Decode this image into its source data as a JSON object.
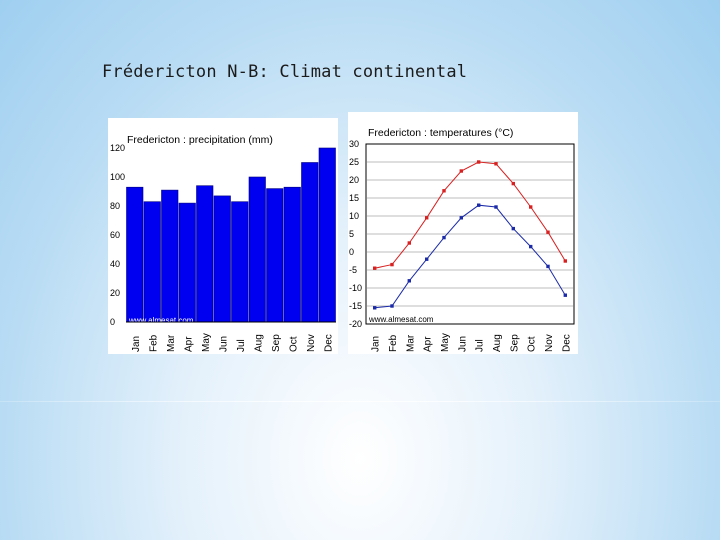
{
  "slide": {
    "title": "Frédericton N-B: Climat continental"
  },
  "chart_data": [
    {
      "type": "bar",
      "title": "Fredericton : precipitation (mm)",
      "categories": [
        "Jan",
        "Feb",
        "Mar",
        "Apr",
        "May",
        "Jun",
        "Jul",
        "Aug",
        "Sep",
        "Oct",
        "Nov",
        "Dec"
      ],
      "values": [
        93,
        83,
        91,
        82,
        94,
        87,
        83,
        100,
        92,
        93,
        110,
        120
      ],
      "ylim": [
        0,
        120
      ],
      "yticks": [
        0,
        20,
        40,
        60,
        80,
        100,
        120
      ],
      "xlabel": "",
      "ylabel": "",
      "watermark": "www.almesat.com",
      "colors": {
        "bar": "#0000f0",
        "bar_edge": "#000080"
      }
    },
    {
      "type": "line",
      "title": "Fredericton : temperatures (°C)",
      "categories": [
        "Jan",
        "Feb",
        "Mar",
        "Apr",
        "May",
        "Jun",
        "Jul",
        "Aug",
        "Sep",
        "Oct",
        "Nov",
        "Dec"
      ],
      "series": [
        {
          "values": [
            -4.5,
            -3.5,
            2.5,
            9.5,
            17,
            22.5,
            25,
            24.5,
            19,
            12.5,
            5.5,
            -2.5
          ],
          "color": "#d82020"
        },
        {
          "values": [
            -15.5,
            -15,
            -8,
            -2,
            4,
            9.5,
            13,
            12.5,
            6.5,
            1.5,
            -4,
            -12
          ],
          "color": "#1a2aa8"
        }
      ],
      "ylim": [
        -20,
        30
      ],
      "yticks": [
        30,
        25,
        20,
        15,
        10,
        5,
        0,
        -5,
        -10,
        -15,
        -20
      ],
      "grid": true,
      "xlabel": "",
      "ylabel": "",
      "watermark": "www.almesat.com"
    }
  ]
}
